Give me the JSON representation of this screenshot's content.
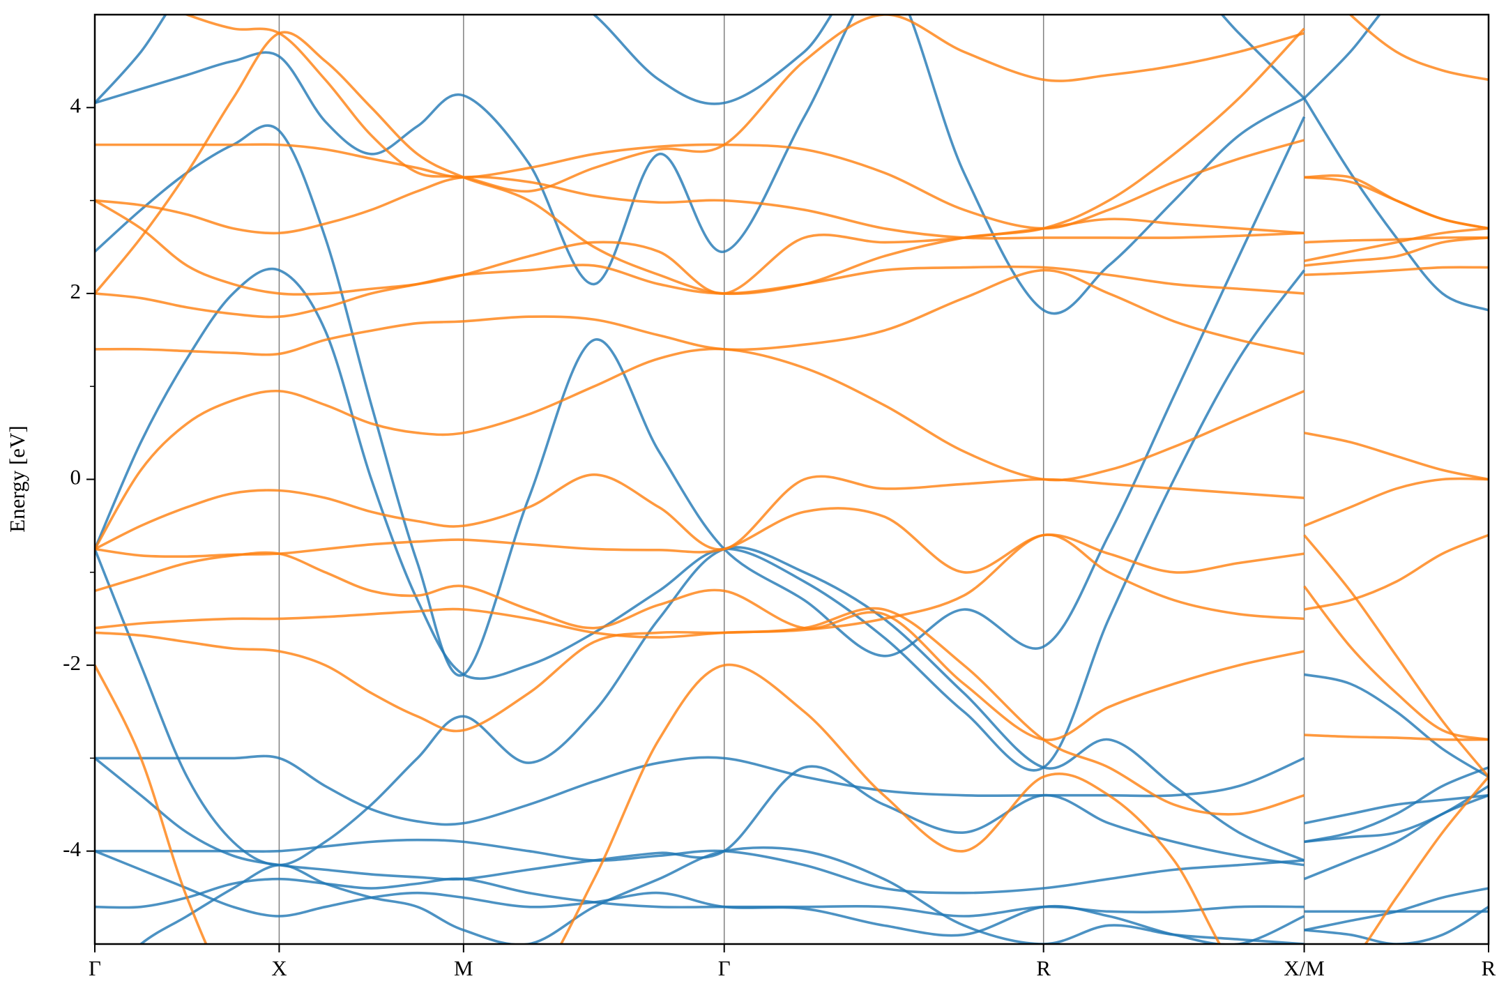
{
  "chart_data": {
    "type": "line",
    "ylabel": "Energy [eV]",
    "x": [
      0,
      0.125,
      0.25,
      0.375,
      0.5,
      0.625,
      0.75,
      0.875,
      1.0,
      1.177,
      1.354,
      1.53,
      1.707,
      1.924,
      2.14,
      2.357,
      2.573,
      2.75,
      2.927,
      3.103,
      3.28,
      3.28,
      3.28,
      3.405,
      3.53,
      3.655,
      3.78
    ],
    "xlim": [
      0,
      3.78
    ],
    "xticks": [
      {
        "value": 0,
        "label": "Γ"
      },
      {
        "value": 0.5,
        "label": "X"
      },
      {
        "value": 1.0,
        "label": "M"
      },
      {
        "value": 1.707,
        "label": "Γ"
      },
      {
        "value": 2.573,
        "label": "R"
      },
      {
        "value": 3.28,
        "label": "X/M"
      },
      {
        "value": 3.78,
        "label": "R"
      }
    ],
    "ylim": [
      -5,
      5
    ],
    "yticks": [
      -4,
      -2,
      0,
      2,
      4
    ],
    "yminorticks": [
      -3,
      -1,
      1,
      3
    ],
    "xgrid": true,
    "series": [
      {
        "color": "#1f77b4",
        "values": [
          -0.75,
          0.4,
          1.3,
          2.0,
          2.25,
          1.6,
          0.0,
          -1.3,
          -2.1,
          -2.0,
          -1.65,
          -1.2,
          -0.75,
          -1.1,
          -1.7,
          -2.5,
          -3.1,
          -1.5,
          0.0,
          1.3,
          2.25,
          null,
          -2.1,
          -2.2,
          -2.5,
          -2.9,
          -3.2
        ]
      },
      {
        "color": "#1f77b4",
        "values": [
          2.45,
          2.9,
          3.3,
          3.6,
          3.75,
          2.6,
          0.8,
          -0.9,
          -2.1,
          -0.2,
          1.5,
          0.3,
          -0.75,
          -1.3,
          -1.9,
          -1.4,
          -1.8,
          -0.6,
          0.9,
          2.4,
          3.9,
          null,
          4.1,
          3.3,
          2.6,
          2.0,
          1.82
        ]
      },
      {
        "color": "#1f77b4",
        "values": [
          4.05,
          4.2,
          4.35,
          4.5,
          4.55,
          3.85,
          3.5,
          3.8,
          4.13,
          3.4,
          2.1,
          3.5,
          2.45,
          3.9,
          5.5,
          5.5,
          5.5,
          5.5,
          5.5,
          4.8,
          4.1,
          null,
          4.1,
          4.6,
          5.2,
          5.5,
          5.5
        ]
      },
      {
        "color": "#1f77b4",
        "values": [
          4.05,
          4.6,
          5.3,
          5.5,
          5.5,
          5.5,
          5.5,
          5.5,
          5.5,
          5.5,
          5.0,
          4.3,
          4.05,
          4.6,
          5.5,
          3.3,
          1.82,
          2.3,
          3.0,
          3.7,
          4.1,
          null,
          5.5,
          5.5,
          5.5,
          5.5,
          5.5
        ]
      },
      {
        "color": "#1f77b4",
        "values": [
          -0.75,
          -2.0,
          -3.2,
          -3.9,
          -4.15,
          -3.9,
          -3.5,
          -3.0,
          -2.55,
          -3.05,
          -2.5,
          -1.5,
          -0.75,
          -1.0,
          -1.5,
          -2.3,
          -3.1,
          -2.8,
          -3.3,
          -3.8,
          -4.1,
          null,
          -3.7,
          -3.6,
          -3.5,
          -3.45,
          -3.4
        ]
      },
      {
        "color": "#1f77b4",
        "values": [
          -3.0,
          -3.0,
          -3.0,
          -3.0,
          -3.0,
          -3.3,
          -3.55,
          -3.68,
          -3.7,
          -3.5,
          -3.25,
          -3.05,
          -3.0,
          -3.2,
          -3.35,
          -3.4,
          -3.4,
          -3.4,
          -3.4,
          -3.3,
          -3.0,
          null,
          -3.9,
          -3.8,
          -3.6,
          -3.3,
          -3.1
        ]
      },
      {
        "color": "#1f77b4",
        "values": [
          -3.0,
          -3.4,
          -3.8,
          -4.05,
          -4.15,
          -4.2,
          -4.25,
          -4.28,
          -4.3,
          -4.2,
          -4.1,
          -4.02,
          -4.0,
          -3.1,
          -3.5,
          -3.8,
          -3.4,
          -3.7,
          -3.9,
          -4.05,
          -4.15,
          null,
          -4.3,
          -4.1,
          -3.9,
          -3.6,
          -3.4
        ]
      },
      {
        "color": "#1f77b4",
        "values": [
          -4.0,
          -4.0,
          -4.0,
          -4.0,
          -4.0,
          -3.95,
          -3.9,
          -3.88,
          -3.9,
          -4.0,
          -4.1,
          -4.05,
          -4.0,
          -4.15,
          -4.4,
          -4.45,
          -4.4,
          -4.3,
          -4.2,
          -4.15,
          -4.1,
          null,
          -3.9,
          -3.85,
          -3.8,
          -3.6,
          -3.3
        ]
      },
      {
        "color": "#1f77b4",
        "values": [
          -4.0,
          -4.2,
          -4.4,
          -4.6,
          -4.7,
          -4.6,
          -4.5,
          -4.45,
          -4.5,
          -4.6,
          -4.55,
          -4.45,
          -4.6,
          -4.62,
          -4.8,
          -4.9,
          -4.6,
          -4.7,
          -4.9,
          -5.0,
          -4.7,
          null,
          -4.85,
          -4.75,
          -4.65,
          -4.5,
          -4.4
        ]
      },
      {
        "color": "#1f77b4",
        "values": [
          -4.6,
          -4.6,
          -4.5,
          -4.35,
          -4.3,
          -4.35,
          -4.4,
          -4.35,
          -4.3,
          -4.45,
          -4.55,
          -4.6,
          -4.6,
          -4.6,
          -4.6,
          -4.7,
          -4.6,
          -4.65,
          -4.65,
          -4.6,
          -4.6,
          null,
          -4.65,
          -4.65,
          -4.65,
          -4.65,
          -4.65
        ]
      },
      {
        "color": "#1f77b4",
        "values": [
          -5.5,
          -5.0,
          -4.7,
          -4.4,
          -4.15,
          -4.35,
          -4.5,
          -4.6,
          -4.85,
          -5.0,
          -4.6,
          -4.3,
          -4.0,
          -4.0,
          -4.3,
          -4.8,
          -5.0,
          -4.8,
          -4.9,
          -4.95,
          -5.0,
          null,
          -4.85,
          -4.9,
          -5.0,
          -4.9,
          -4.6
        ]
      },
      {
        "color": "#ff7f0e",
        "values": [
          3.6,
          3.6,
          3.6,
          3.6,
          3.6,
          3.55,
          3.45,
          3.35,
          3.25,
          3.35,
          3.5,
          3.58,
          3.6,
          3.55,
          3.3,
          2.9,
          2.7,
          2.9,
          3.2,
          3.45,
          3.65,
          null,
          3.25,
          3.2,
          3.0,
          2.8,
          2.7
        ]
      },
      {
        "color": "#ff7f0e",
        "values": [
          3.0,
          2.95,
          2.85,
          2.7,
          2.65,
          2.75,
          2.9,
          3.1,
          3.25,
          3.2,
          3.05,
          2.98,
          3.0,
          2.9,
          2.7,
          2.6,
          2.6,
          2.6,
          2.6,
          2.62,
          2.65,
          null,
          2.55,
          2.57,
          2.58,
          2.6,
          2.6
        ]
      },
      {
        "color": "#ff7f0e",
        "values": [
          2.0,
          1.95,
          1.85,
          1.78,
          1.75,
          1.85,
          2.0,
          2.1,
          2.2,
          2.25,
          2.3,
          2.1,
          2.0,
          2.1,
          2.25,
          2.28,
          2.28,
          2.2,
          2.1,
          2.05,
          2.0,
          null,
          2.2,
          2.22,
          2.25,
          2.28,
          2.28
        ]
      },
      {
        "color": "#ff7f0e",
        "values": [
          1.4,
          1.4,
          1.38,
          1.36,
          1.35,
          1.5,
          1.6,
          1.68,
          1.7,
          1.75,
          1.72,
          1.55,
          1.4,
          1.45,
          1.6,
          1.95,
          2.25,
          2.0,
          1.7,
          1.5,
          1.35,
          null,
          2.35,
          2.45,
          2.55,
          2.65,
          2.7
        ]
      },
      {
        "color": "#ff7f0e",
        "values": [
          -0.75,
          0.1,
          0.6,
          0.85,
          0.95,
          0.8,
          0.6,
          0.5,
          0.5,
          0.7,
          1.0,
          1.3,
          1.4,
          1.2,
          0.8,
          0.3,
          0.0,
          0.1,
          0.35,
          0.65,
          0.95,
          null,
          0.5,
          0.4,
          0.25,
          0.1,
          0.0
        ]
      },
      {
        "color": "#ff7f0e",
        "values": [
          -0.75,
          -0.5,
          -0.3,
          -0.15,
          -0.12,
          -0.2,
          -0.35,
          -0.45,
          -0.5,
          -0.3,
          0.05,
          -0.3,
          -0.75,
          0.0,
          -0.1,
          -0.05,
          0.0,
          -0.05,
          -0.1,
          -0.15,
          -0.2,
          null,
          -0.5,
          -0.3,
          -0.1,
          0.0,
          0.0
        ]
      },
      {
        "color": "#ff7f0e",
        "values": [
          -0.75,
          -0.82,
          -0.83,
          -0.81,
          -0.8,
          -0.75,
          -0.7,
          -0.67,
          -0.65,
          -0.7,
          -0.75,
          -0.76,
          -0.75,
          -0.35,
          -0.4,
          -1.0,
          -0.6,
          -0.8,
          -1.0,
          -0.9,
          -0.8,
          null,
          -0.6,
          -1.2,
          -1.9,
          -2.6,
          -3.2
        ]
      },
      {
        "color": "#ff7f0e",
        "values": [
          -1.2,
          -1.05,
          -0.9,
          -0.82,
          -0.8,
          -1.0,
          -1.2,
          -1.25,
          -1.15,
          -1.4,
          -1.6,
          -1.35,
          -1.2,
          -1.6,
          -1.45,
          -2.2,
          -2.8,
          -2.45,
          -2.2,
          -2.0,
          -1.85,
          null,
          -1.15,
          -1.8,
          -2.3,
          -2.7,
          -2.8
        ]
      },
      {
        "color": "#ff7f0e",
        "values": [
          -1.65,
          -1.68,
          -1.75,
          -1.82,
          -1.85,
          -2.0,
          -2.3,
          -2.55,
          -2.7,
          -2.3,
          -1.75,
          -1.65,
          -1.65,
          -1.6,
          -1.4,
          -2.0,
          -2.8,
          -3.1,
          -3.5,
          -3.6,
          -3.4,
          null,
          -2.75,
          -2.77,
          -2.78,
          -2.8,
          -2.8
        ]
      },
      {
        "color": "#ff7f0e",
        "values": [
          -1.6,
          -1.55,
          -1.52,
          -1.5,
          -1.5,
          -1.48,
          -1.45,
          -1.42,
          -1.4,
          -1.5,
          -1.65,
          -1.7,
          -1.65,
          -1.62,
          -1.5,
          -1.25,
          -0.6,
          -1.0,
          -1.3,
          -1.45,
          -1.5,
          null,
          -1.4,
          -1.3,
          -1.1,
          -0.8,
          -0.6
        ]
      },
      {
        "color": "#ff7f0e",
        "values": [
          -2.0,
          -3.0,
          -4.5,
          -5.5,
          -5.5,
          -5.5,
          -5.5,
          -5.5,
          -5.5,
          -5.5,
          -4.3,
          -2.8,
          -2.0,
          -2.5,
          -3.4,
          -4.0,
          -3.2,
          -3.4,
          -4.1,
          -5.3,
          -5.5,
          null,
          -5.5,
          -5.2,
          -4.5,
          -3.8,
          -3.2
        ]
      },
      {
        "color": "#ff7f0e",
        "values": [
          2.0,
          2.6,
          3.3,
          4.1,
          4.8,
          4.5,
          4.0,
          3.5,
          3.25,
          3.0,
          2.5,
          2.2,
          2.0,
          2.1,
          2.4,
          2.6,
          2.7,
          3.0,
          3.5,
          4.1,
          4.85,
          null,
          3.25,
          3.25,
          3.0,
          2.8,
          2.7
        ]
      },
      {
        "color": "#ff7f0e",
        "values": [
          5.5,
          5.2,
          5.0,
          4.85,
          4.8,
          4.3,
          3.7,
          3.3,
          3.25,
          3.1,
          3.35,
          3.55,
          3.6,
          4.5,
          5.0,
          4.6,
          4.3,
          4.35,
          4.45,
          4.6,
          4.8,
          null,
          5.5,
          5.0,
          4.6,
          4.4,
          4.3
        ]
      },
      {
        "color": "#ff7f0e",
        "values": [
          3.0,
          2.7,
          2.3,
          2.1,
          2.0,
          2.0,
          2.05,
          2.1,
          2.2,
          2.4,
          2.55,
          2.45,
          2.0,
          2.6,
          2.55,
          2.6,
          2.7,
          2.8,
          2.75,
          2.7,
          2.65,
          null,
          2.3,
          2.35,
          2.4,
          2.55,
          2.6
        ]
      }
    ]
  }
}
